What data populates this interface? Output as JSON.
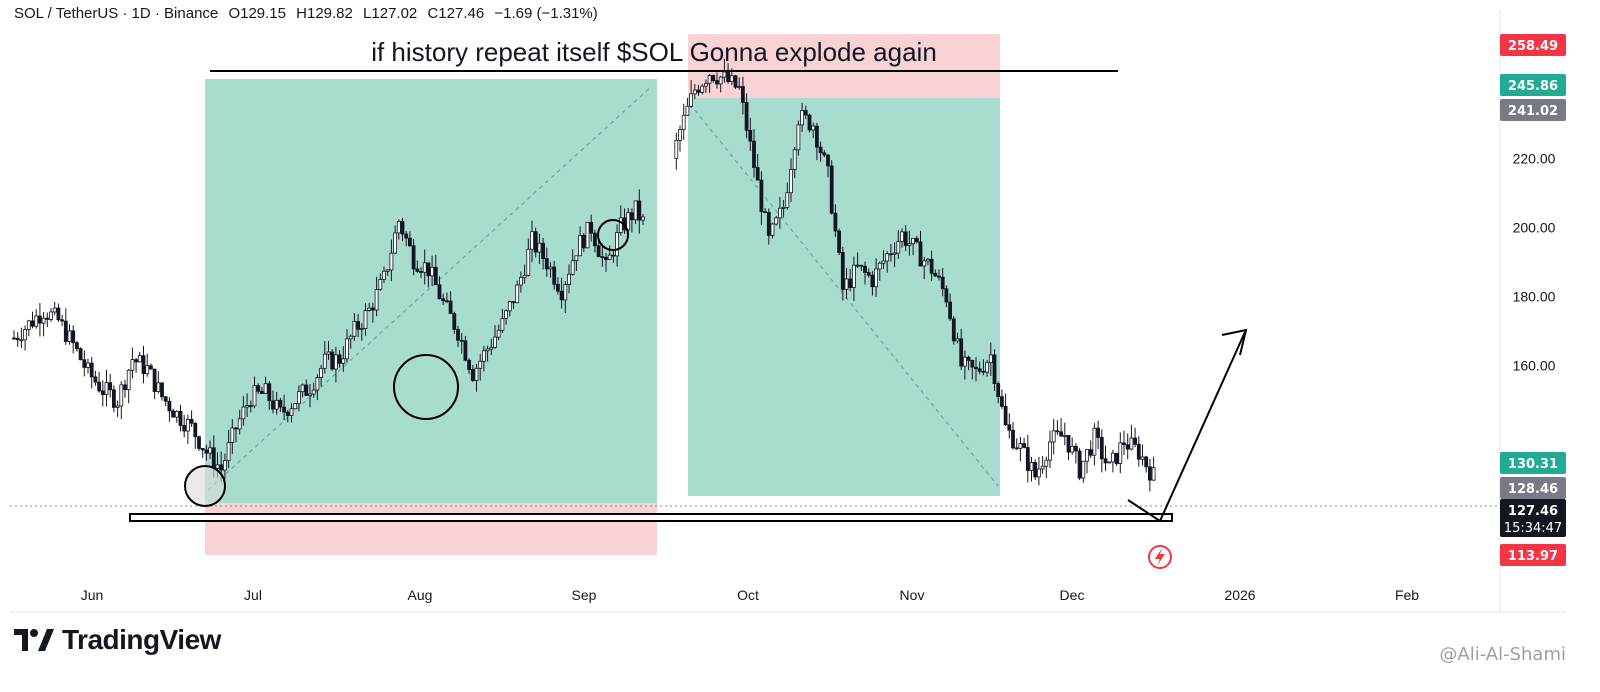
{
  "header": {
    "symbol": "SOL / TetherUS · 1D · Binance",
    "open": "O129.15",
    "high": "H129.82",
    "low": "L127.02",
    "close": "C127.46",
    "change": "−1.69 (−1.31%)"
  },
  "annotation_text": "if history repeat itself $SOL Gonna explode again",
  "branding": {
    "logo_text": "TradingView",
    "watermark": "@Ali-Al-Shami"
  },
  "colors": {
    "up": "#089981",
    "down": "#f23645",
    "zone_green": "#a8dccf",
    "zone_red": "#f9d2d6",
    "badge_green": "#22ab94",
    "badge_gray": "#787b86",
    "badge_red": "#f23645",
    "badge_dark": "#131722"
  },
  "chart_data": {
    "type": "candlestick",
    "ylim": [
      95,
      263
    ],
    "y_ticks": [
      160,
      180,
      200,
      220
    ],
    "y_tick_labels": [
      "160.00",
      "180.00",
      "200.00",
      "220.00"
    ],
    "x_labels": [
      "Jun",
      "Jul",
      "Aug",
      "Sep",
      "Oct",
      "Nov",
      "Dec",
      "2026",
      "Feb"
    ],
    "price_badges": [
      {
        "label": "258.49",
        "value": 258.49,
        "color": "red"
      },
      {
        "label": "245.86",
        "value": 245.86,
        "color": "green"
      },
      {
        "label": "241.02",
        "value": 241.02,
        "color": "gray"
      },
      {
        "label": "130.31",
        "value": 130.31,
        "color": "green"
      },
      {
        "label": "128.46",
        "value": 128.46,
        "color": "gray"
      },
      {
        "label": "127.46",
        "value": 127.46,
        "color": "dark",
        "countdown": "15:34:47"
      },
      {
        "label": "113.97",
        "value": 113.97,
        "color": "red"
      }
    ],
    "current_price": 127.46,
    "support_level": 124,
    "resistance_level": 249,
    "series": [
      {
        "name": "SOL/USDT",
        "close_path": [
          [
            0,
            168
          ],
          [
            4,
            172
          ],
          [
            8,
            176
          ],
          [
            12,
            173
          ],
          [
            16,
            166
          ],
          [
            20,
            158
          ],
          [
            24,
            153
          ],
          [
            28,
            150
          ],
          [
            32,
            162
          ],
          [
            36,
            159
          ],
          [
            40,
            151
          ],
          [
            44,
            146
          ],
          [
            48,
            142
          ],
          [
            52,
            135
          ],
          [
            56,
            130
          ],
          [
            60,
            142
          ],
          [
            64,
            151
          ],
          [
            68,
            152
          ],
          [
            72,
            146
          ],
          [
            76,
            150
          ],
          [
            80,
            154
          ],
          [
            84,
            161
          ],
          [
            88,
            162
          ],
          [
            92,
            170
          ],
          [
            96,
            176
          ],
          [
            100,
            185
          ],
          [
            104,
            202
          ],
          [
            108,
            191
          ],
          [
            112,
            188
          ],
          [
            116,
            178
          ],
          [
            120,
            170
          ],
          [
            124,
            158
          ],
          [
            128,
            165
          ],
          [
            132,
            172
          ],
          [
            136,
            182
          ],
          [
            140,
            196
          ],
          [
            144,
            190
          ],
          [
            148,
            182
          ],
          [
            152,
            194
          ],
          [
            156,
            200
          ],
          [
            160,
            188
          ],
          [
            164,
            200
          ],
          [
            168,
            205
          ],
          [
            172,
            198
          ],
          [
            176,
            212
          ],
          [
            180,
            228
          ],
          [
            184,
            240
          ],
          [
            188,
            245
          ],
          [
            192,
            243
          ],
          [
            196,
            240
          ],
          [
            200,
            218
          ],
          [
            204,
            196
          ],
          [
            208,
            206
          ],
          [
            212,
            232
          ],
          [
            216,
            230
          ],
          [
            220,
            215
          ],
          [
            224,
            182
          ],
          [
            228,
            188
          ],
          [
            232,
            185
          ],
          [
            236,
            192
          ],
          [
            240,
            198
          ],
          [
            244,
            193
          ],
          [
            248,
            188
          ],
          [
            252,
            180
          ],
          [
            256,
            160
          ],
          [
            260,
            158
          ],
          [
            264,
            163
          ],
          [
            268,
            142
          ],
          [
            272,
            136
          ],
          [
            276,
            128
          ],
          [
            280,
            138
          ],
          [
            284,
            140
          ],
          [
            288,
            130
          ],
          [
            292,
            139
          ],
          [
            296,
            130
          ],
          [
            300,
            138
          ],
          [
            304,
            135
          ],
          [
            308,
            128
          ]
        ]
      }
    ]
  }
}
